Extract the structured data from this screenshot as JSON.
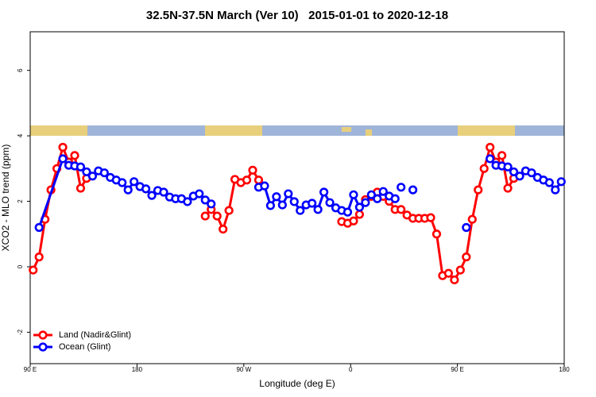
{
  "chart_data": {
    "type": "line",
    "title": "32.5N-37.5N March (Ver 10)   2015-01-01 to 2020-12-18",
    "x_label": "Longitude (deg E)",
    "y_label": "XCO2 - MLO trend (ppm)",
    "xlim": [
      90,
      540
    ],
    "xticks": [
      {
        "value": 90,
        "label": "90 E"
      },
      180,
      {
        "value": 270,
        "label": "90 W"
      },
      {
        "value": 360,
        "label": "0"
      },
      {
        "value": 450,
        "label": "90 E"
      },
      {
        "value": 540,
        "label": "180"
      }
    ],
    "ylim": [
      -2.96,
      7.18
    ],
    "yticks": [
      -2,
      0,
      2,
      4,
      6
    ],
    "legend": "bottomleft",
    "series": [
      {
        "name": "Land (Nadir&Glint)",
        "color": "#ff0000",
        "x": [
          92.5,
          97.5,
          102.5,
          107.5,
          112.5,
          117.5,
          122.5,
          127.5,
          132.5,
          137.5,
          null,
          237.5,
          242.5,
          247.5,
          252.5,
          257.5,
          262.5,
          267.5,
          272.5,
          277.5,
          282.5,
          null,
          352.5,
          357.5,
          362.5,
          367.5,
          372.5,
          377.5,
          382.5,
          387.5,
          392.5,
          397.5,
          402.5,
          407.5,
          412.5,
          417.5,
          422.5,
          427.5,
          432.5,
          437.5,
          442.5,
          447.5,
          452.5,
          457.5,
          462.5,
          467.5,
          472.5,
          477.5,
          482.5,
          487.5,
          492.5,
          497.5
        ],
        "values": [
          -0.1,
          0.3,
          1.45,
          2.35,
          3.0,
          3.65,
          3.2,
          3.4,
          2.4,
          2.7,
          null,
          1.55,
          1.75,
          1.55,
          1.15,
          1.72,
          2.67,
          2.57,
          2.65,
          2.95,
          2.65,
          null,
          1.38,
          1.33,
          1.4,
          1.6,
          2.05,
          2.15,
          2.28,
          2.15,
          2.0,
          1.75,
          1.75,
          1.58,
          1.48,
          1.48,
          1.48,
          1.5,
          1.0,
          -0.27,
          -0.2,
          -0.4,
          -0.1,
          0.3,
          1.45,
          2.35,
          3.0,
          3.65,
          3.2,
          3.4,
          2.4,
          2.7
        ]
      },
      {
        "name": "Ocean (Glint)",
        "color": "#0000ff",
        "x": [
          97.5,
          117.5,
          122.5,
          127.5,
          132.5,
          137.5,
          142.5,
          147.5,
          152.5,
          157.5,
          162.5,
          167.5,
          172.5,
          177.5,
          182.5,
          187.5,
          192.5,
          197.5,
          202.5,
          207.5,
          212.5,
          217.5,
          222.5,
          227.5,
          232.5,
          237.5,
          242.5,
          null,
          282.5,
          287.5,
          292.5,
          297.5,
          302.5,
          307.5,
          312.5,
          317.5,
          322.5,
          327.5,
          332.5,
          337.5,
          342.5,
          347.5,
          352.5,
          357.5,
          362.5,
          367.5,
          372.5,
          377.5,
          382.5,
          387.5,
          392.5,
          397.5,
          null,
          402.5,
          null,
          412.5,
          null,
          457.5,
          null,
          477.5,
          482.5,
          487.5,
          492.5,
          497.5,
          502.5,
          507.5,
          512.5,
          517.5,
          522.5,
          527.5,
          532.5,
          537.5
        ],
        "values": [
          1.2,
          3.3,
          3.1,
          3.08,
          3.05,
          2.9,
          2.77,
          2.93,
          2.87,
          2.73,
          2.65,
          2.57,
          2.35,
          2.6,
          2.45,
          2.38,
          2.18,
          2.33,
          2.28,
          2.13,
          2.08,
          2.08,
          1.99,
          2.16,
          2.23,
          2.04,
          1.92,
          null,
          2.43,
          2.47,
          1.87,
          2.14,
          1.89,
          2.23,
          1.99,
          1.72,
          1.89,
          1.94,
          1.75,
          2.28,
          1.96,
          1.8,
          1.72,
          1.67,
          2.2,
          1.82,
          1.96,
          2.2,
          2.08,
          2.3,
          2.16,
          2.08,
          null,
          2.43,
          null,
          2.35,
          null,
          1.2,
          null,
          3.3,
          3.1,
          3.08,
          3.05,
          2.9,
          2.77,
          2.93,
          2.87,
          2.73,
          2.65,
          2.57,
          2.35,
          2.6
        ]
      }
    ]
  }
}
